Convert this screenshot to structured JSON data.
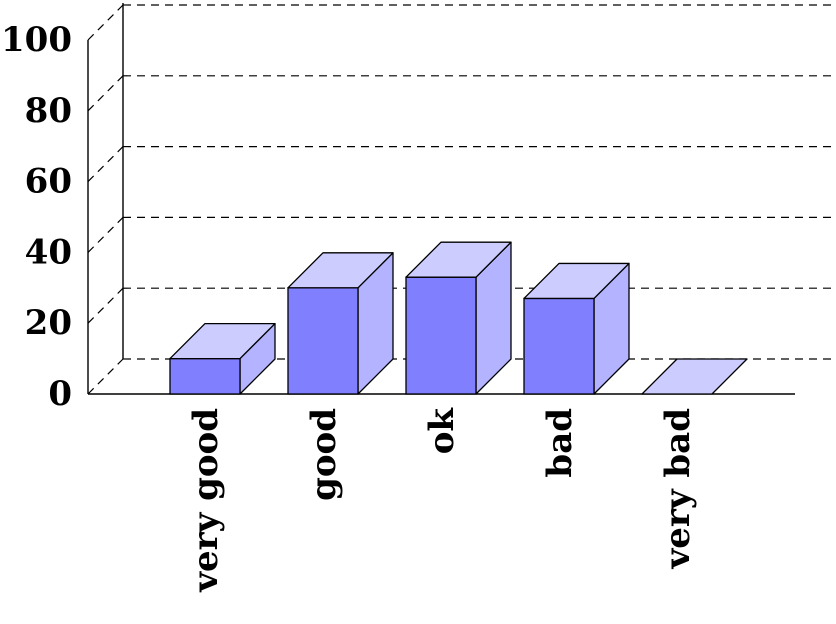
{
  "chart_data": {
    "type": "bar",
    "title": "",
    "xlabel": "",
    "ylabel": "",
    "categories": [
      "very good",
      "good",
      "ok",
      "bad",
      "very bad"
    ],
    "values": [
      10,
      30,
      33,
      27,
      0
    ],
    "ylim": [
      0,
      100
    ],
    "yticks": [
      0,
      20,
      40,
      60,
      80,
      100
    ],
    "style": "3d-bar",
    "grid": true,
    "grid_style": "dashed",
    "colors": {
      "front": "#8080ff",
      "top": "#ccccff",
      "side": "#b3b3ff",
      "stroke": "#000000",
      "grid": "#000000"
    }
  }
}
